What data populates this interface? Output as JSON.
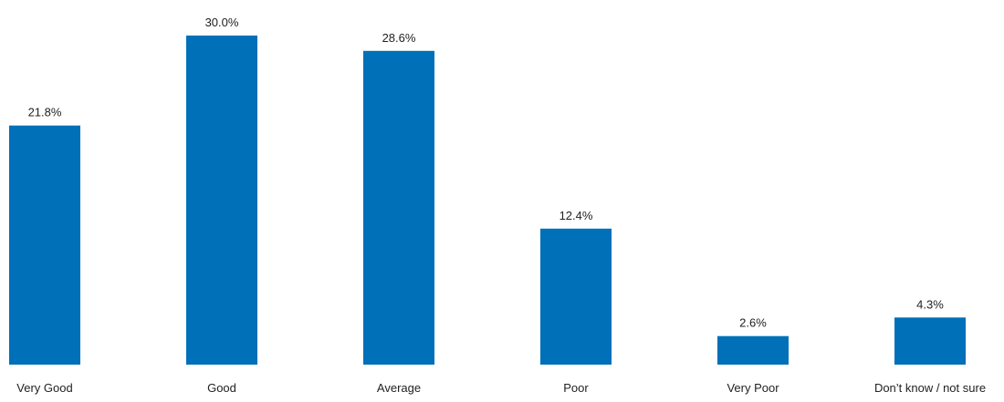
{
  "chart_data": {
    "type": "bar",
    "categories": [
      "Very Good",
      "Good",
      "Average",
      "Poor",
      "Very Poor",
      "Don’t know / not sure"
    ],
    "values": [
      21.8,
      30.0,
      28.6,
      12.4,
      2.6,
      4.3
    ],
    "data_labels": [
      "21.8%",
      "30.0%",
      "28.6%",
      "12.4%",
      "2.6%",
      "4.3%"
    ],
    "value_unit": "%",
    "title": "",
    "xlabel": "",
    "ylabel": "",
    "ylim": [
      0,
      30
    ],
    "grid": false,
    "legend": "none",
    "bar_color": "#0070B8"
  }
}
